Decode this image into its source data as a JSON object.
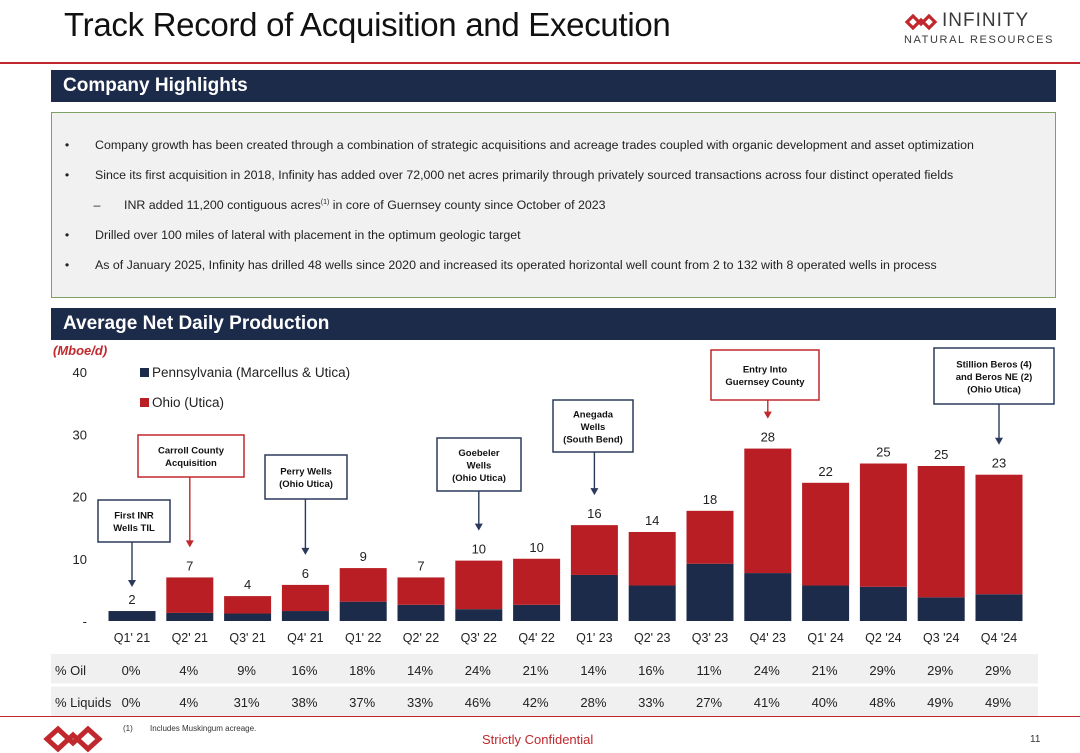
{
  "header": {
    "title": "Track Record of Acquisition and Execution",
    "logo_name": "INFINITY",
    "logo_sub": "NATURAL RESOURCES"
  },
  "highlights": {
    "heading": "Company Highlights",
    "items": [
      {
        "bullet": "•",
        "text": "Company growth has been created through a combination of strategic acquisitions and acreage trades coupled with organic development and asset optimization"
      },
      {
        "bullet": "•",
        "text": "Since its first acquisition in 2018, Infinity has added over 72,000 net acres primarily through privately sourced transactions across four distinct operated fields"
      },
      {
        "bullet": "–",
        "text_pre": "INR added 11,200 contiguous acres",
        "sup": "(1)",
        "text_post": " in core of Guernsey county since October of 2023"
      },
      {
        "bullet": "•",
        "text": "Drilled over 100 miles of lateral with placement in the optimum geologic target"
      },
      {
        "bullet": "•",
        "text": "As of January 2025, Infinity has drilled 48 wells since 2020 and increased its operated horizontal well count from 2 to 132 with 8 operated wells in process"
      }
    ]
  },
  "production": {
    "heading": "Average Net Daily Production"
  },
  "chart_data": {
    "type": "bar",
    "stacked": true,
    "unit_label": "(Mboe/d)",
    "ylim": [
      0,
      40
    ],
    "yticks": [
      0,
      10,
      20,
      30,
      40
    ],
    "ytick_labels": [
      "-",
      "10",
      "20",
      "30",
      "40"
    ],
    "categories": [
      "Q1' 21",
      "Q2' 21",
      "Q3' 21",
      "Q4' 21",
      "Q1' 22",
      "Q2' 22",
      "Q3' 22",
      "Q4' 22",
      "Q1' 23",
      "Q2' 23",
      "Q3' 23",
      "Q4' 23",
      "Q1' 24",
      "Q2 '24",
      "Q3 '24",
      "Q4 '24"
    ],
    "series": [
      {
        "name": "Pennsylvania (Marcellus & Utica)",
        "color": "#1d2b4b",
        "values": [
          1.6,
          1.3,
          1.2,
          1.6,
          3.1,
          2.6,
          1.9,
          2.6,
          7.4,
          5.7,
          9.2,
          7.7,
          5.7,
          5.5,
          3.8,
          4.3
        ]
      },
      {
        "name": "Ohio (Utica)",
        "color": "#b81e24",
        "values": [
          0.0,
          5.7,
          2.8,
          4.2,
          5.4,
          4.4,
          7.8,
          7.4,
          8.0,
          8.6,
          8.5,
          20.0,
          16.5,
          19.8,
          21.1,
          19.2
        ]
      }
    ],
    "total_labels": [
      "2",
      "7",
      "4",
      "6",
      "9",
      "7",
      "10",
      "10",
      "16",
      "14",
      "18",
      "28",
      "22",
      "25",
      "25",
      "23"
    ],
    "annotations": [
      {
        "category_index": 0,
        "lines": [
          "First INR",
          "Wells TIL"
        ]
      },
      {
        "category_index": 1,
        "lines": [
          "Carroll County",
          "Acquisition"
        ]
      },
      {
        "category_index": 3,
        "lines": [
          "Perry Wells",
          "(Ohio Utica)"
        ]
      },
      {
        "category_index": 6,
        "lines": [
          "Goebeler",
          "Wells",
          "(Ohio Utica)"
        ]
      },
      {
        "category_index": 8,
        "lines": [
          "Anegada",
          "Wells",
          "(South Bend)"
        ]
      },
      {
        "category_index": 11,
        "lines": [
          "Entry Into",
          "Guernsey County"
        ],
        "highlight": true
      },
      {
        "category_index": 15,
        "lines": [
          "Stillion Beros (4)",
          "and Beros NE (2)",
          "(Ohio Utica)"
        ]
      }
    ],
    "table": [
      {
        "label": "% Oil",
        "values": [
          "0%",
          "4%",
          "9%",
          "16%",
          "18%",
          "14%",
          "24%",
          "21%",
          "14%",
          "16%",
          "11%",
          "24%",
          "21%",
          "29%",
          "29%",
          "29%"
        ]
      },
      {
        "label": "% Liquids",
        "values": [
          "0%",
          "4%",
          "31%",
          "38%",
          "37%",
          "33%",
          "46%",
          "42%",
          "28%",
          "33%",
          "27%",
          "41%",
          "40%",
          "48%",
          "49%",
          "49%"
        ]
      }
    ],
    "colors": {
      "highlight_border": "#c0282d",
      "callout_border": "#2b3a5c",
      "table_bg": "#f0f0f0"
    }
  },
  "footer": {
    "footnote_num": "(1)",
    "footnote": "Includes Muskingum acreage.",
    "confidential": "Strictly Confidential",
    "page": "11"
  }
}
